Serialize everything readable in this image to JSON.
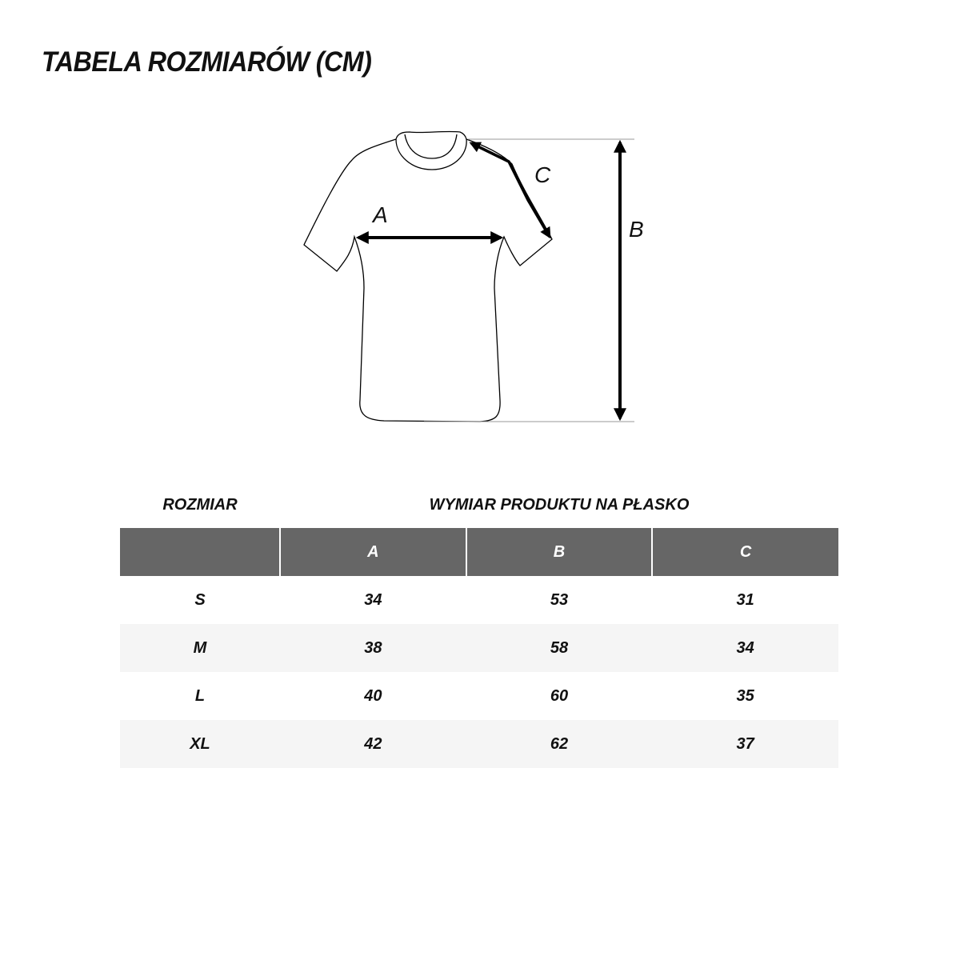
{
  "title": "TABELA ROZMIARÓW (CM)",
  "diagram": {
    "labels": {
      "a": "A",
      "b": "B",
      "c": "C"
    }
  },
  "table": {
    "caption_size": "ROZMIAR",
    "caption_dims": "WYMIAR PRODUKTU NA PŁASKO",
    "headers": [
      "",
      "A",
      "B",
      "C"
    ],
    "rows": [
      [
        "S",
        "34",
        "53",
        "31"
      ],
      [
        "M",
        "38",
        "58",
        "34"
      ],
      [
        "L",
        "40",
        "60",
        "35"
      ],
      [
        "XL",
        "42",
        "62",
        "37"
      ]
    ]
  },
  "colors": {
    "header_bg": "#666666",
    "stripe": "#f5f5f5"
  }
}
